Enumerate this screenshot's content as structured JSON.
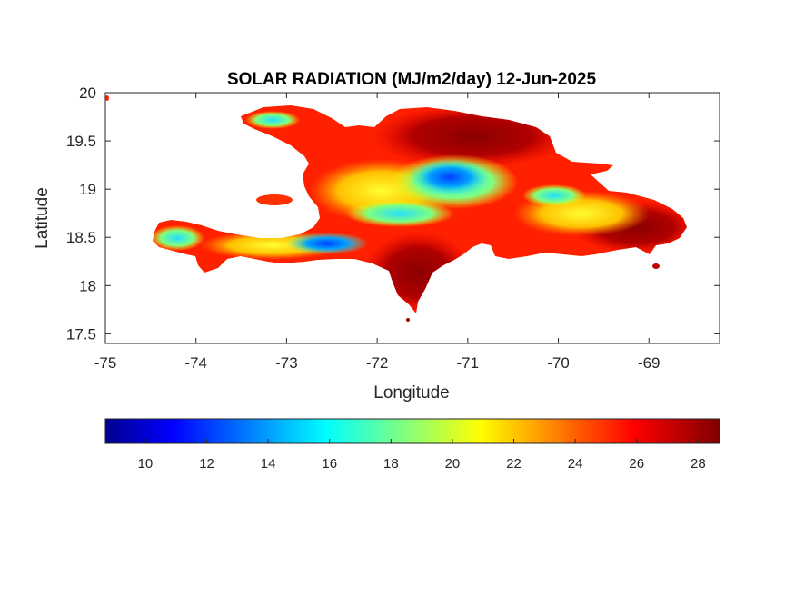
{
  "chart_data": {
    "type": "heatmap",
    "title": "SOLAR RADIATION (MJ/m2/day) 12-Jun-2025",
    "xlabel": "Longitude",
    "ylabel": "Latitude",
    "xlim": [
      -75,
      -68.22
    ],
    "ylim": [
      17.4,
      20
    ],
    "xticks": [
      "-75",
      "-74",
      "-73",
      "-72",
      "-71",
      "-70",
      "-69"
    ],
    "yticks": [
      "17.5",
      "18",
      "18.5",
      "19",
      "19.5",
      "20"
    ],
    "colormap": "jet",
    "colorbar": {
      "range": [
        8.7,
        28.7
      ],
      "ticks": [
        "10",
        "12",
        "14",
        "16",
        "18",
        "20",
        "22",
        "24",
        "26",
        "28"
      ],
      "placement": "bottom"
    },
    "region": "Hispaniola (Haiti and Dominican Republic)",
    "colors": {
      "low": "#00008f",
      "mid": "#00ffff",
      "high": "#800000"
    }
  }
}
